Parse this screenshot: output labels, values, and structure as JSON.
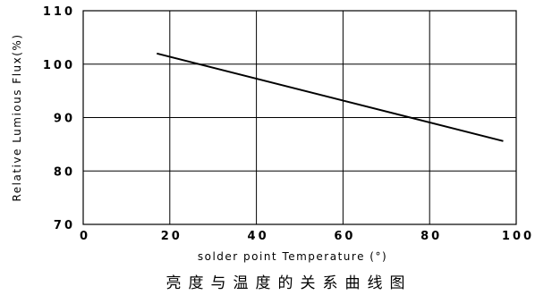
{
  "chart_data": {
    "type": "line",
    "title": "",
    "caption": "亮度与温度的关系曲线图",
    "xlabel": "solder point Temperature (°)",
    "ylabel": "Relative Lumious Flux(%)",
    "xlim": [
      0,
      100
    ],
    "ylim": [
      70,
      110
    ],
    "x_ticks": [
      "0",
      "20",
      "40",
      "60",
      "80",
      "100"
    ],
    "y_ticks": [
      "70",
      "80",
      "90",
      "100",
      "110"
    ],
    "grid": true,
    "series": [
      {
        "x": [
          17,
          97
        ],
        "y": [
          102,
          85.6
        ]
      }
    ]
  }
}
